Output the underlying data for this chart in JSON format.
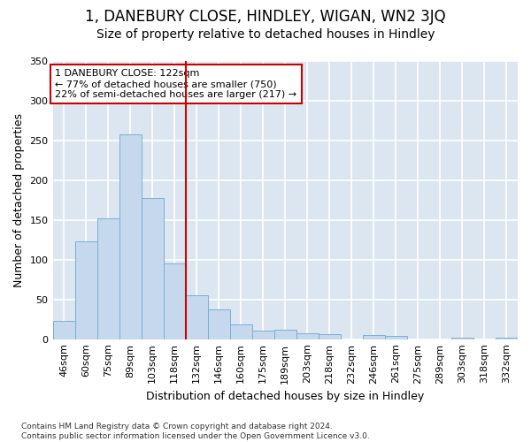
{
  "title": "1, DANEBURY CLOSE, HINDLEY, WIGAN, WN2 3JQ",
  "subtitle": "Size of property relative to detached houses in Hindley",
  "xlabel": "Distribution of detached houses by size in Hindley",
  "ylabel": "Number of detached properties",
  "footnote": "Contains HM Land Registry data © Crown copyright and database right 2024.\nContains public sector information licensed under the Open Government Licence v3.0.",
  "bin_labels": [
    "46sqm",
    "60sqm",
    "75sqm",
    "89sqm",
    "103sqm",
    "118sqm",
    "132sqm",
    "146sqm",
    "160sqm",
    "175sqm",
    "189sqm",
    "203sqm",
    "218sqm",
    "232sqm",
    "246sqm",
    "261sqm",
    "275sqm",
    "289sqm",
    "303sqm",
    "318sqm",
    "332sqm"
  ],
  "bar_values": [
    23,
    123,
    152,
    258,
    178,
    95,
    55,
    38,
    19,
    11,
    12,
    7,
    6,
    0,
    5,
    4,
    0,
    0,
    2,
    0,
    2
  ],
  "bar_color": "#c5d8ee",
  "bar_edge_color": "#7aafd4",
  "vline_x": 5.5,
  "vline_color": "#cc0000",
  "annotation_line1": "1 DANEBURY CLOSE: 122sqm",
  "annotation_line2": "← 77% of detached houses are smaller (750)",
  "annotation_line3": "22% of semi-detached houses are larger (217) →",
  "annotation_box_color": "white",
  "annotation_box_edge": "#cc0000",
  "ylim": [
    0,
    350
  ],
  "yticks": [
    0,
    50,
    100,
    150,
    200,
    250,
    300,
    350
  ],
  "background_color": "#dce6f0",
  "grid_color": "white",
  "title_fontsize": 12,
  "subtitle_fontsize": 10,
  "axis_label_fontsize": 9,
  "tick_fontsize": 8,
  "annotation_fontsize": 8,
  "footnote_fontsize": 6.5
}
